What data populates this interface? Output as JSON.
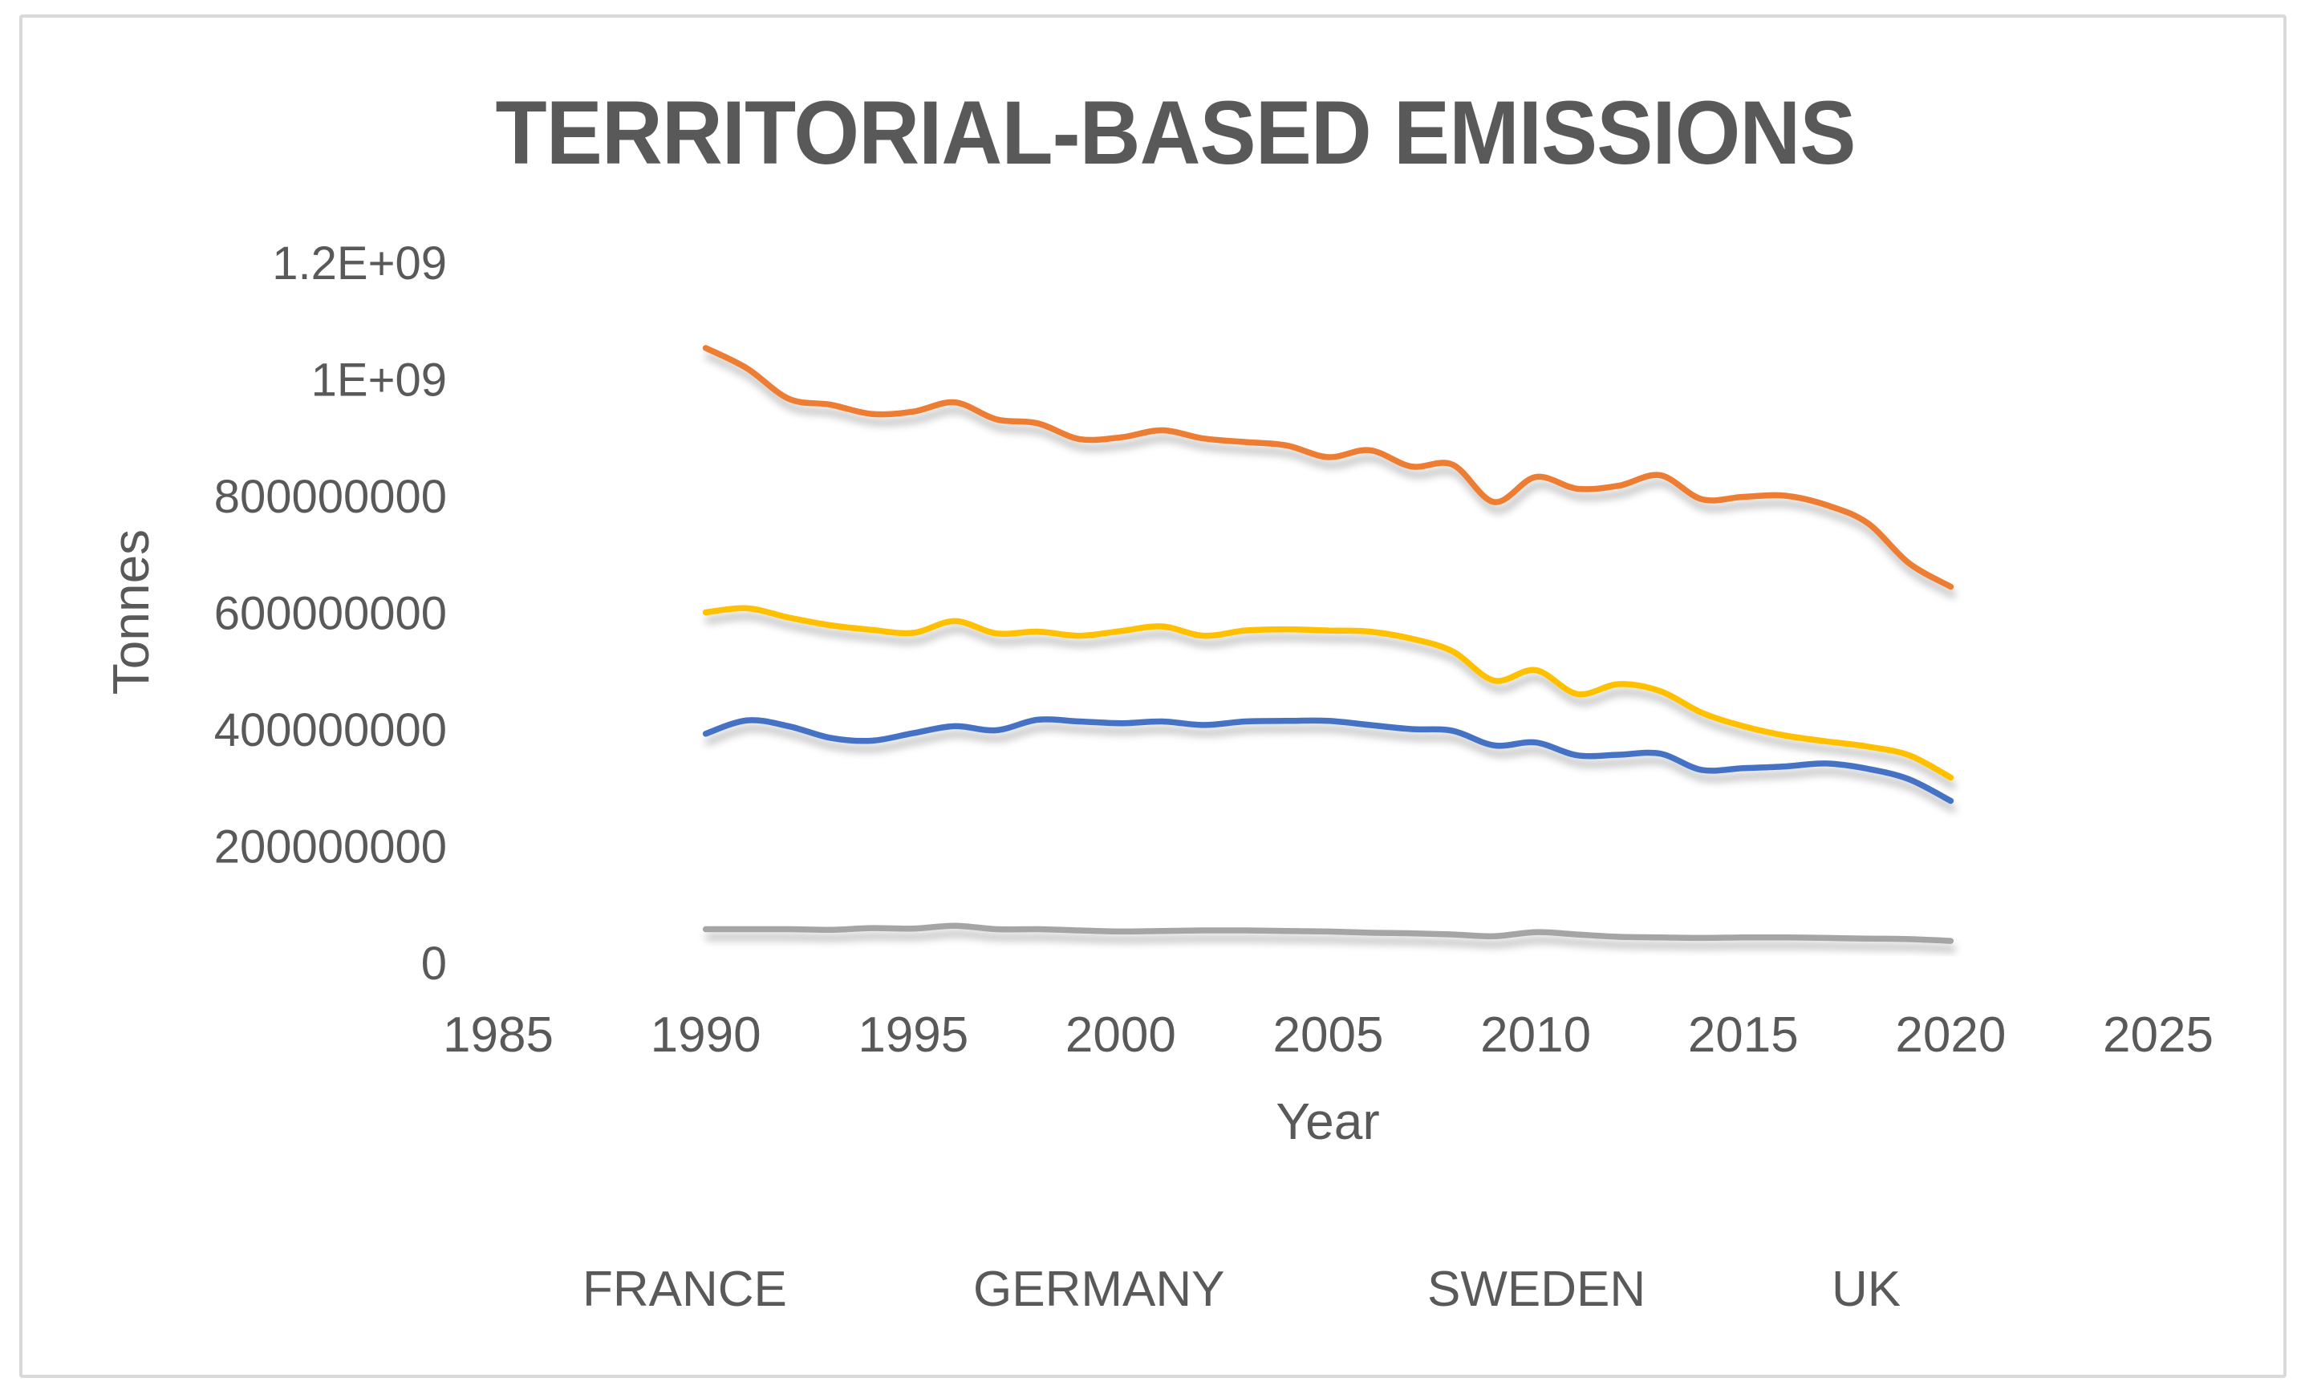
{
  "window": {
    "background_color": "#ffffff",
    "border_color": "#d9d9d9"
  },
  "chart": {
    "title": "TERRITORIAL-BASED EMISSIONS",
    "title_color": "#595959",
    "text_color": "#595959",
    "gridline_color": "#d9d9d9",
    "x_axis": {
      "title": "Year",
      "tick_labels": [
        "1985",
        "1990",
        "1995",
        "2000",
        "2005",
        "2010",
        "2015",
        "2020",
        "2025"
      ],
      "tick_values": [
        1985,
        1990,
        1995,
        2000,
        2005,
        2010,
        2015,
        2020,
        2025
      ],
      "min": 1985,
      "max": 2025
    },
    "y_axis": {
      "title": "Tonnes",
      "tick_labels": [
        "0",
        "200000000",
        "400000000",
        "600000000",
        "800000000",
        "1E+09",
        "1.2E+09"
      ],
      "tick_values": [
        0,
        200000000,
        400000000,
        600000000,
        800000000,
        1000000000,
        1200000000
      ],
      "min": 0,
      "max": 1200000000
    },
    "legend": [
      {
        "label": "FRANCE",
        "color": "#4472C4"
      },
      {
        "label": "GERMANY",
        "color": "#ED7D31"
      },
      {
        "label": "SWEDEN",
        "color": "#A5A5A5"
      },
      {
        "label": "UK",
        "color": "#FFC000"
      }
    ]
  },
  "chart_data": {
    "type": "line",
    "title": "TERRITORIAL-BASED EMISSIONS",
    "xlabel": "Year",
    "ylabel": "Tonnes",
    "xlim": [
      1985,
      2025
    ],
    "ylim": [
      0,
      1200000000
    ],
    "grid": true,
    "legend_position": "bottom",
    "smoothed": true,
    "x": [
      1990,
      1991,
      1992,
      1993,
      1994,
      1995,
      1996,
      1997,
      1998,
      1999,
      2000,
      2001,
      2002,
      2003,
      2004,
      2005,
      2006,
      2007,
      2008,
      2009,
      2010,
      2011,
      2012,
      2013,
      2014,
      2015,
      2016,
      2017,
      2018,
      2019,
      2020
    ],
    "series": [
      {
        "name": "FRANCE",
        "color": "#4472C4",
        "values": [
          392000000,
          415000000,
          405000000,
          385000000,
          380000000,
          393000000,
          405000000,
          398000000,
          416000000,
          413000000,
          410000000,
          413000000,
          407000000,
          413000000,
          414000000,
          414000000,
          407000000,
          400000000,
          397000000,
          372000000,
          377000000,
          355000000,
          356000000,
          358000000,
          330000000,
          333000000,
          336000000,
          341000000,
          332000000,
          314000000,
          277000000
        ]
      },
      {
        "name": "GERMANY",
        "color": "#ED7D31",
        "values": [
          1053000000,
          1018000000,
          966000000,
          956000000,
          940000000,
          944000000,
          960000000,
          931000000,
          924000000,
          897000000,
          900000000,
          912000000,
          898000000,
          892000000,
          886000000,
          866000000,
          878000000,
          850000000,
          853000000,
          789000000,
          832000000,
          812000000,
          817000000,
          835000000,
          794000000,
          798000000,
          800000000,
          784000000,
          753000000,
          684000000,
          644000000
        ]
      },
      {
        "name": "SWEDEN",
        "color": "#A5A5A5",
        "values": [
          57000000,
          57000000,
          57000000,
          56000000,
          59000000,
          58000000,
          63000000,
          57000000,
          57000000,
          55000000,
          53000000,
          54000000,
          55000000,
          55000000,
          54000000,
          53000000,
          51000000,
          50000000,
          48000000,
          45000000,
          52000000,
          48000000,
          44000000,
          43000000,
          42000000,
          43000000,
          43000000,
          42000000,
          41000000,
          40000000,
          37000000
        ]
      },
      {
        "name": "UK",
        "color": "#FFC000",
        "values": [
          600000000,
          607000000,
          591000000,
          578000000,
          570000000,
          565000000,
          585000000,
          564000000,
          567000000,
          560000000,
          568000000,
          576000000,
          560000000,
          569000000,
          571000000,
          569000000,
          567000000,
          555000000,
          533000000,
          483000000,
          501000000,
          460000000,
          477000000,
          465000000,
          428000000,
          405000000,
          389000000,
          379000000,
          370000000,
          355000000,
          317000000
        ]
      }
    ]
  }
}
